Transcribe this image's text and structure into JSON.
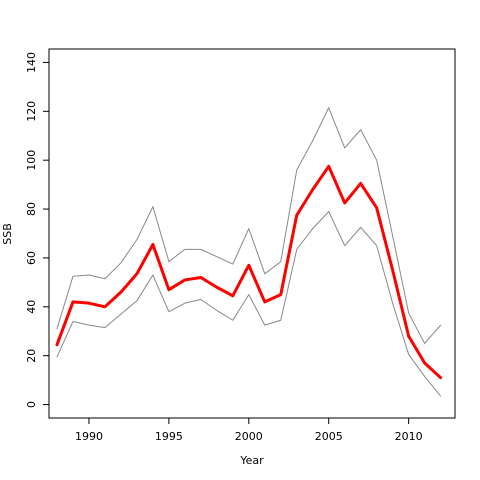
{
  "chart_data": {
    "type": "line",
    "xlabel": "Year",
    "ylabel": "SSB",
    "xlim": [
      1987.5,
      2012.9
    ],
    "ylim": [
      -5.5,
      145.5
    ],
    "x_ticks": [
      1990,
      1995,
      2000,
      2005,
      2010
    ],
    "y_ticks": [
      0,
      20,
      40,
      60,
      80,
      100,
      120,
      140
    ],
    "grid": false,
    "legend": "none",
    "x": [
      1988,
      1989,
      1990,
      1991,
      1992,
      1993,
      1994,
      1995,
      1996,
      1997,
      1998,
      1999,
      2000,
      2001,
      2002,
      2003,
      2004,
      2005,
      2006,
      2007,
      2008,
      2009,
      2010,
      2011,
      2012
    ],
    "series": [
      {
        "color": "#ff0000",
        "role": "estimate",
        "values": [
          24.5,
          42,
          41.5,
          40,
          46,
          53.5,
          65.5,
          47,
          51,
          52,
          48,
          44.5,
          57,
          42,
          45,
          77.5,
          88,
          97.5,
          82.5,
          90.5,
          80.5,
          55,
          28,
          17,
          11
        ]
      },
      {
        "color": "#888888",
        "role": "upper bound",
        "values": [
          31,
          52.5,
          53,
          51.5,
          58,
          67.5,
          81,
          58.5,
          63.5,
          63.5,
          60.5,
          57.5,
          72,
          53.5,
          58.5,
          96,
          108,
          121.5,
          105,
          112.5,
          100,
          69,
          37.5,
          25,
          32.5
        ]
      },
      {
        "color": "#888888",
        "role": "lower bound",
        "values": [
          19.5,
          34,
          32.5,
          31.5,
          37,
          42.5,
          53,
          38,
          41.5,
          43,
          38.5,
          34.5,
          45,
          32.5,
          34.5,
          63.5,
          72,
          79,
          65,
          72.5,
          65,
          41.5,
          20.5,
          11.5,
          3.5
        ]
      }
    ]
  }
}
